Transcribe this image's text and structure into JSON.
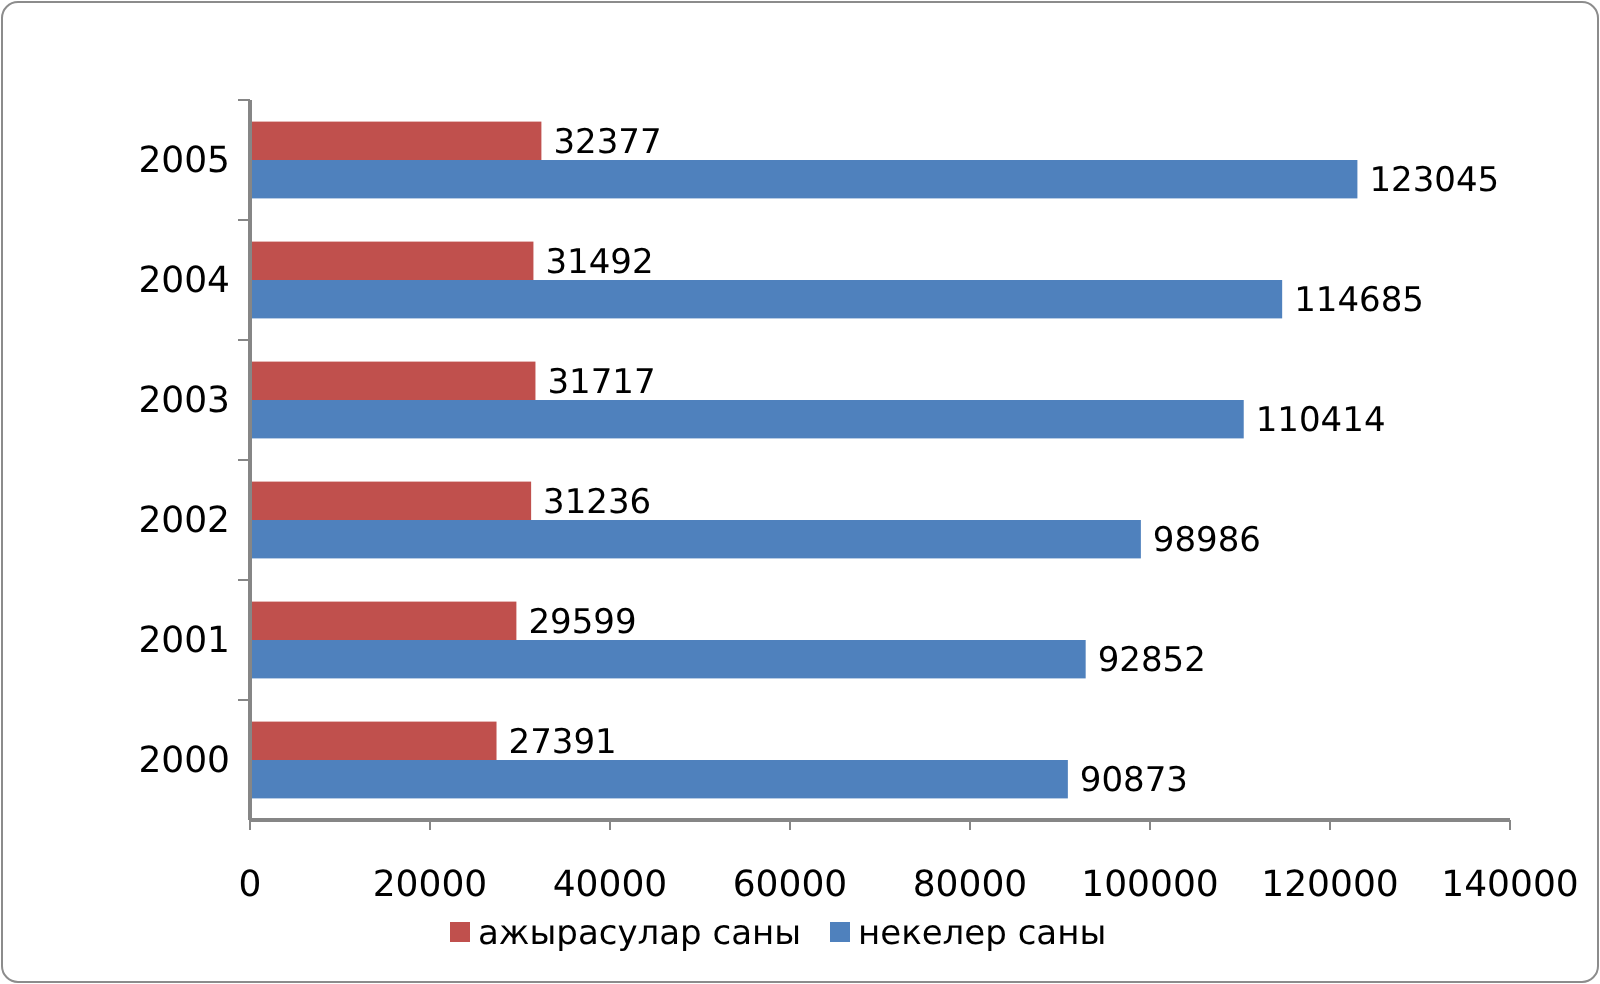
{
  "chart_data": {
    "type": "bar",
    "orientation": "horizontal",
    "categories": [
      "2005",
      "2004",
      "2003",
      "2002",
      "2001",
      "2000"
    ],
    "series": [
      {
        "name": "ажырасулар саны",
        "color": "#c0504d",
        "values": [
          32377,
          31492,
          31717,
          31236,
          29599,
          27391
        ]
      },
      {
        "name": "некелер саны",
        "color": "#4f81bd",
        "values": [
          123045,
          114685,
          110414,
          98986,
          92852,
          90873
        ]
      }
    ],
    "xlim": [
      0,
      140000
    ],
    "xticks": [
      0,
      20000,
      40000,
      60000,
      80000,
      100000,
      120000,
      140000
    ],
    "data_labels": true,
    "grid": false,
    "legend": "bottom"
  }
}
